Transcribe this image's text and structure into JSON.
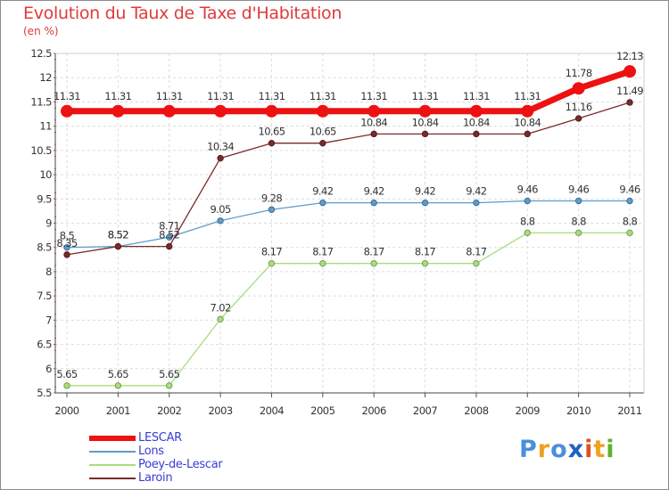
{
  "chart_data": {
    "type": "line",
    "title": "Evolution du Taux de Taxe d'Habitation",
    "subtitle": "(en %)",
    "xlabel": "",
    "ylabel": "",
    "x": [
      "2000",
      "2001",
      "2002",
      "2003",
      "2004",
      "2005",
      "2006",
      "2007",
      "2008",
      "2009",
      "2010",
      "2011"
    ],
    "ylim": [
      5.5,
      12.5
    ],
    "yticks": [
      "5.5",
      "6",
      "6.5",
      "7",
      "7.5",
      "8",
      "8.5",
      "9",
      "9.5",
      "10",
      "10.5",
      "11",
      "11.5",
      "12",
      "12.5"
    ],
    "legend_position": "bottom-left",
    "series": [
      {
        "name": "LESCAR",
        "color": "#ee1111",
        "values": [
          11.31,
          11.31,
          11.31,
          11.31,
          11.31,
          11.31,
          11.31,
          11.31,
          11.31,
          11.31,
          11.78,
          12.13
        ],
        "labels": [
          "11.31",
          "11.31",
          "11.31",
          "11.31",
          "11.31",
          "11.31",
          "11.31",
          "11.31",
          "11.31",
          "11.31",
          "11.78",
          "12.13"
        ]
      },
      {
        "name": "Lons",
        "color": "#5d9ccc",
        "values": [
          8.5,
          8.52,
          8.71,
          9.05,
          9.28,
          9.42,
          9.42,
          9.42,
          9.42,
          9.46,
          9.46,
          9.46
        ],
        "labels": [
          "8.5",
          "8.52",
          "8.71",
          "9.05",
          "9.28",
          "9.42",
          "9.42",
          "9.42",
          "9.42",
          "9.46",
          "9.46",
          "9.46"
        ]
      },
      {
        "name": "Poey-de-Lescar",
        "color": "#a8de7d",
        "values": [
          5.65,
          5.65,
          5.65,
          7.02,
          8.17,
          8.17,
          8.17,
          8.17,
          8.17,
          8.8,
          8.8,
          8.8
        ],
        "labels": [
          "5.65",
          "5.65",
          "5.65",
          "7.02",
          "8.17",
          "8.17",
          "8.17",
          "8.17",
          "8.17",
          "8.8",
          "8.8",
          "8.8"
        ]
      },
      {
        "name": "Laroin",
        "color": "#7a2a2a",
        "values": [
          8.35,
          8.52,
          8.52,
          10.34,
          10.65,
          10.65,
          10.84,
          10.84,
          10.84,
          10.84,
          11.16,
          11.49
        ],
        "labels": [
          "8.35",
          "8.52",
          "8.52",
          "10.34",
          "10.65",
          "10.65",
          "10.84",
          "10.84",
          "10.84",
          "10.84",
          "11.16",
          "11.49"
        ]
      }
    ]
  },
  "logo": {
    "text": "Proxiti",
    "letters": [
      "P",
      "r",
      "o",
      "x",
      "i",
      "t",
      "i"
    ],
    "colors": [
      "#4a90d9",
      "#f0a020",
      "#4a90d9",
      "#2060c0",
      "#e05020",
      "#f0a020",
      "#60b030"
    ]
  }
}
